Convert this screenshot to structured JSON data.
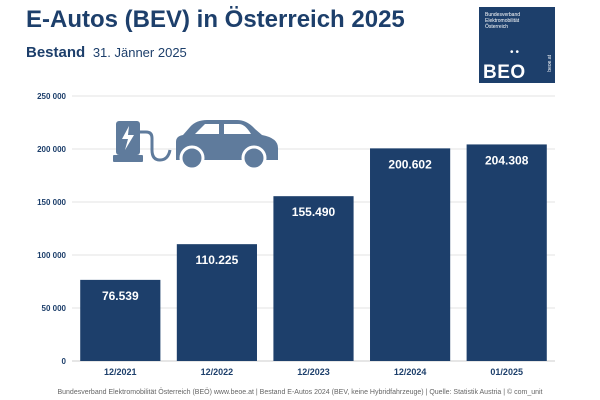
{
  "header": {
    "title": "E-Autos (BEV) in Österreich 2025",
    "subtitle_strong": "Bestand",
    "subtitle_date": "31. Jänner 2025"
  },
  "logo": {
    "org_text": "Bundesverband Elektromobilität Österreich",
    "mark": "BEO",
    "site": "beoe.at"
  },
  "colors": {
    "brand": "#1d3f6b",
    "bar": "#1d3f6b",
    "icon": "#5f7b9c",
    "grid": "#e3e3e3"
  },
  "chart_data": {
    "type": "bar",
    "categories": [
      "12/2021",
      "12/2022",
      "12/2023",
      "12/2024",
      "01/2025"
    ],
    "values": [
      76539,
      110225,
      155490,
      200602,
      204308
    ],
    "value_labels": [
      "76.539",
      "110.225",
      "155.490",
      "200.602",
      "204.308"
    ],
    "yticks": [
      0,
      50000,
      100000,
      150000,
      200000,
      250000
    ],
    "ytick_labels": [
      "0",
      "50 000",
      "100 000",
      "150 000",
      "200 000",
      "250 000"
    ],
    "ylim": [
      0,
      250000
    ],
    "title": "E-Autos (BEV) in Österreich 2025",
    "xlabel": "",
    "ylabel": "",
    "grid": true,
    "legend": "none",
    "decoration_icon": "charging-station-car-icon"
  },
  "footer": {
    "text": "Bundesverband Elektromobilität Österreich (BEÖ) www.beoe.at | Bestand E-Autos 2024 (BEV, keine Hybridfahrzeuge) | Quelle: Statistik Austria | © com_unit"
  }
}
